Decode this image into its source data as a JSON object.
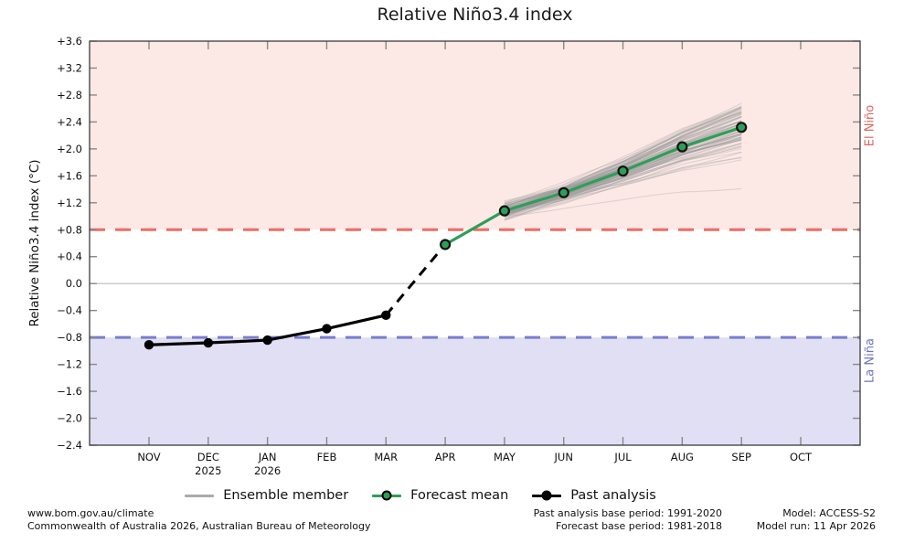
{
  "title": "Relative Niño3.4 index",
  "band_labels": {
    "elnino": "El Niño",
    "lanina": "La Niña"
  },
  "legend": [
    {
      "label": "Ensemble member",
      "swatch": "gray-line"
    },
    {
      "label": "Forecast mean",
      "swatch": "green-line-dot"
    },
    {
      "label": "Past analysis",
      "swatch": "black-line-dot"
    }
  ],
  "footer": {
    "left": [
      "www.bom.gov.au/climate",
      "Commonwealth of Australia 2026, Australian Bureau of Meteorology"
    ],
    "center": [
      "Past analysis base period: 1991-2020",
      "Forecast base period: 1981-2018"
    ],
    "right": [
      "Model: ACCESS-S2",
      "Model run: 11 Apr 2026"
    ]
  },
  "colors": {
    "elnino_band": "#fce9e6",
    "lanina_band": "#e0dff4",
    "elnino_line": "#f26b62",
    "lanina_line": "#7a7ccf",
    "elnino_text": "#e0665e",
    "lanina_text": "#6f71c4",
    "forecast_green": "#2d9e58",
    "past_black": "#000000",
    "ensemble_gray": "#999999",
    "zero_line": "#bbbbbb",
    "axis": "#3c3c3c",
    "tick": "#888888"
  },
  "chart_data": {
    "type": "line",
    "title": "Relative Niño3.4 index",
    "ylabel": "Relative Niño3.4 index (°C)",
    "ylim": [
      -2.4,
      3.6
    ],
    "ytick_step": 0.4,
    "grid": "zero-line-only",
    "categories": [
      "NOV",
      "DEC",
      "JAN",
      "FEB",
      "MAR",
      "APR",
      "MAY",
      "JUN",
      "JUL",
      "AUG",
      "SEP",
      "OCT"
    ],
    "x_sublabels": [
      {
        "month": "DEC",
        "text": "2025"
      },
      {
        "month": "JAN",
        "text": "2026"
      }
    ],
    "thresholds": {
      "elnino": 0.8,
      "lanina": -0.8,
      "style": "dashed"
    },
    "series": [
      {
        "name": "Past analysis",
        "style": "solid-black-dots",
        "x": [
          "NOV",
          "DEC",
          "JAN",
          "FEB",
          "MAR"
        ],
        "values": [
          -0.91,
          -0.88,
          -0.84,
          -0.67,
          -0.47
        ]
      },
      {
        "name": "Transition (analysis to forecast)",
        "style": "dashed-black",
        "x": [
          "MAR",
          "APR"
        ],
        "values": [
          -0.47,
          0.58
        ]
      },
      {
        "name": "Forecast mean",
        "style": "solid-green-dots",
        "x": [
          "APR",
          "MAY",
          "JUN",
          "JUL",
          "AUG",
          "SEP"
        ],
        "values": [
          0.58,
          1.08,
          1.35,
          1.67,
          2.03,
          2.32
        ]
      }
    ],
    "ensemble": {
      "name": "Ensemble member",
      "months": [
        "MAY",
        "JUN",
        "JUL",
        "AUG",
        "SEP"
      ],
      "mean": [
        1.08,
        1.35,
        1.67,
        2.03,
        2.32
      ],
      "approx_count": 85,
      "start_spread": 0.2,
      "end_range": [
        1.3,
        3.15
      ]
    },
    "legend_position": "bottom-center"
  }
}
